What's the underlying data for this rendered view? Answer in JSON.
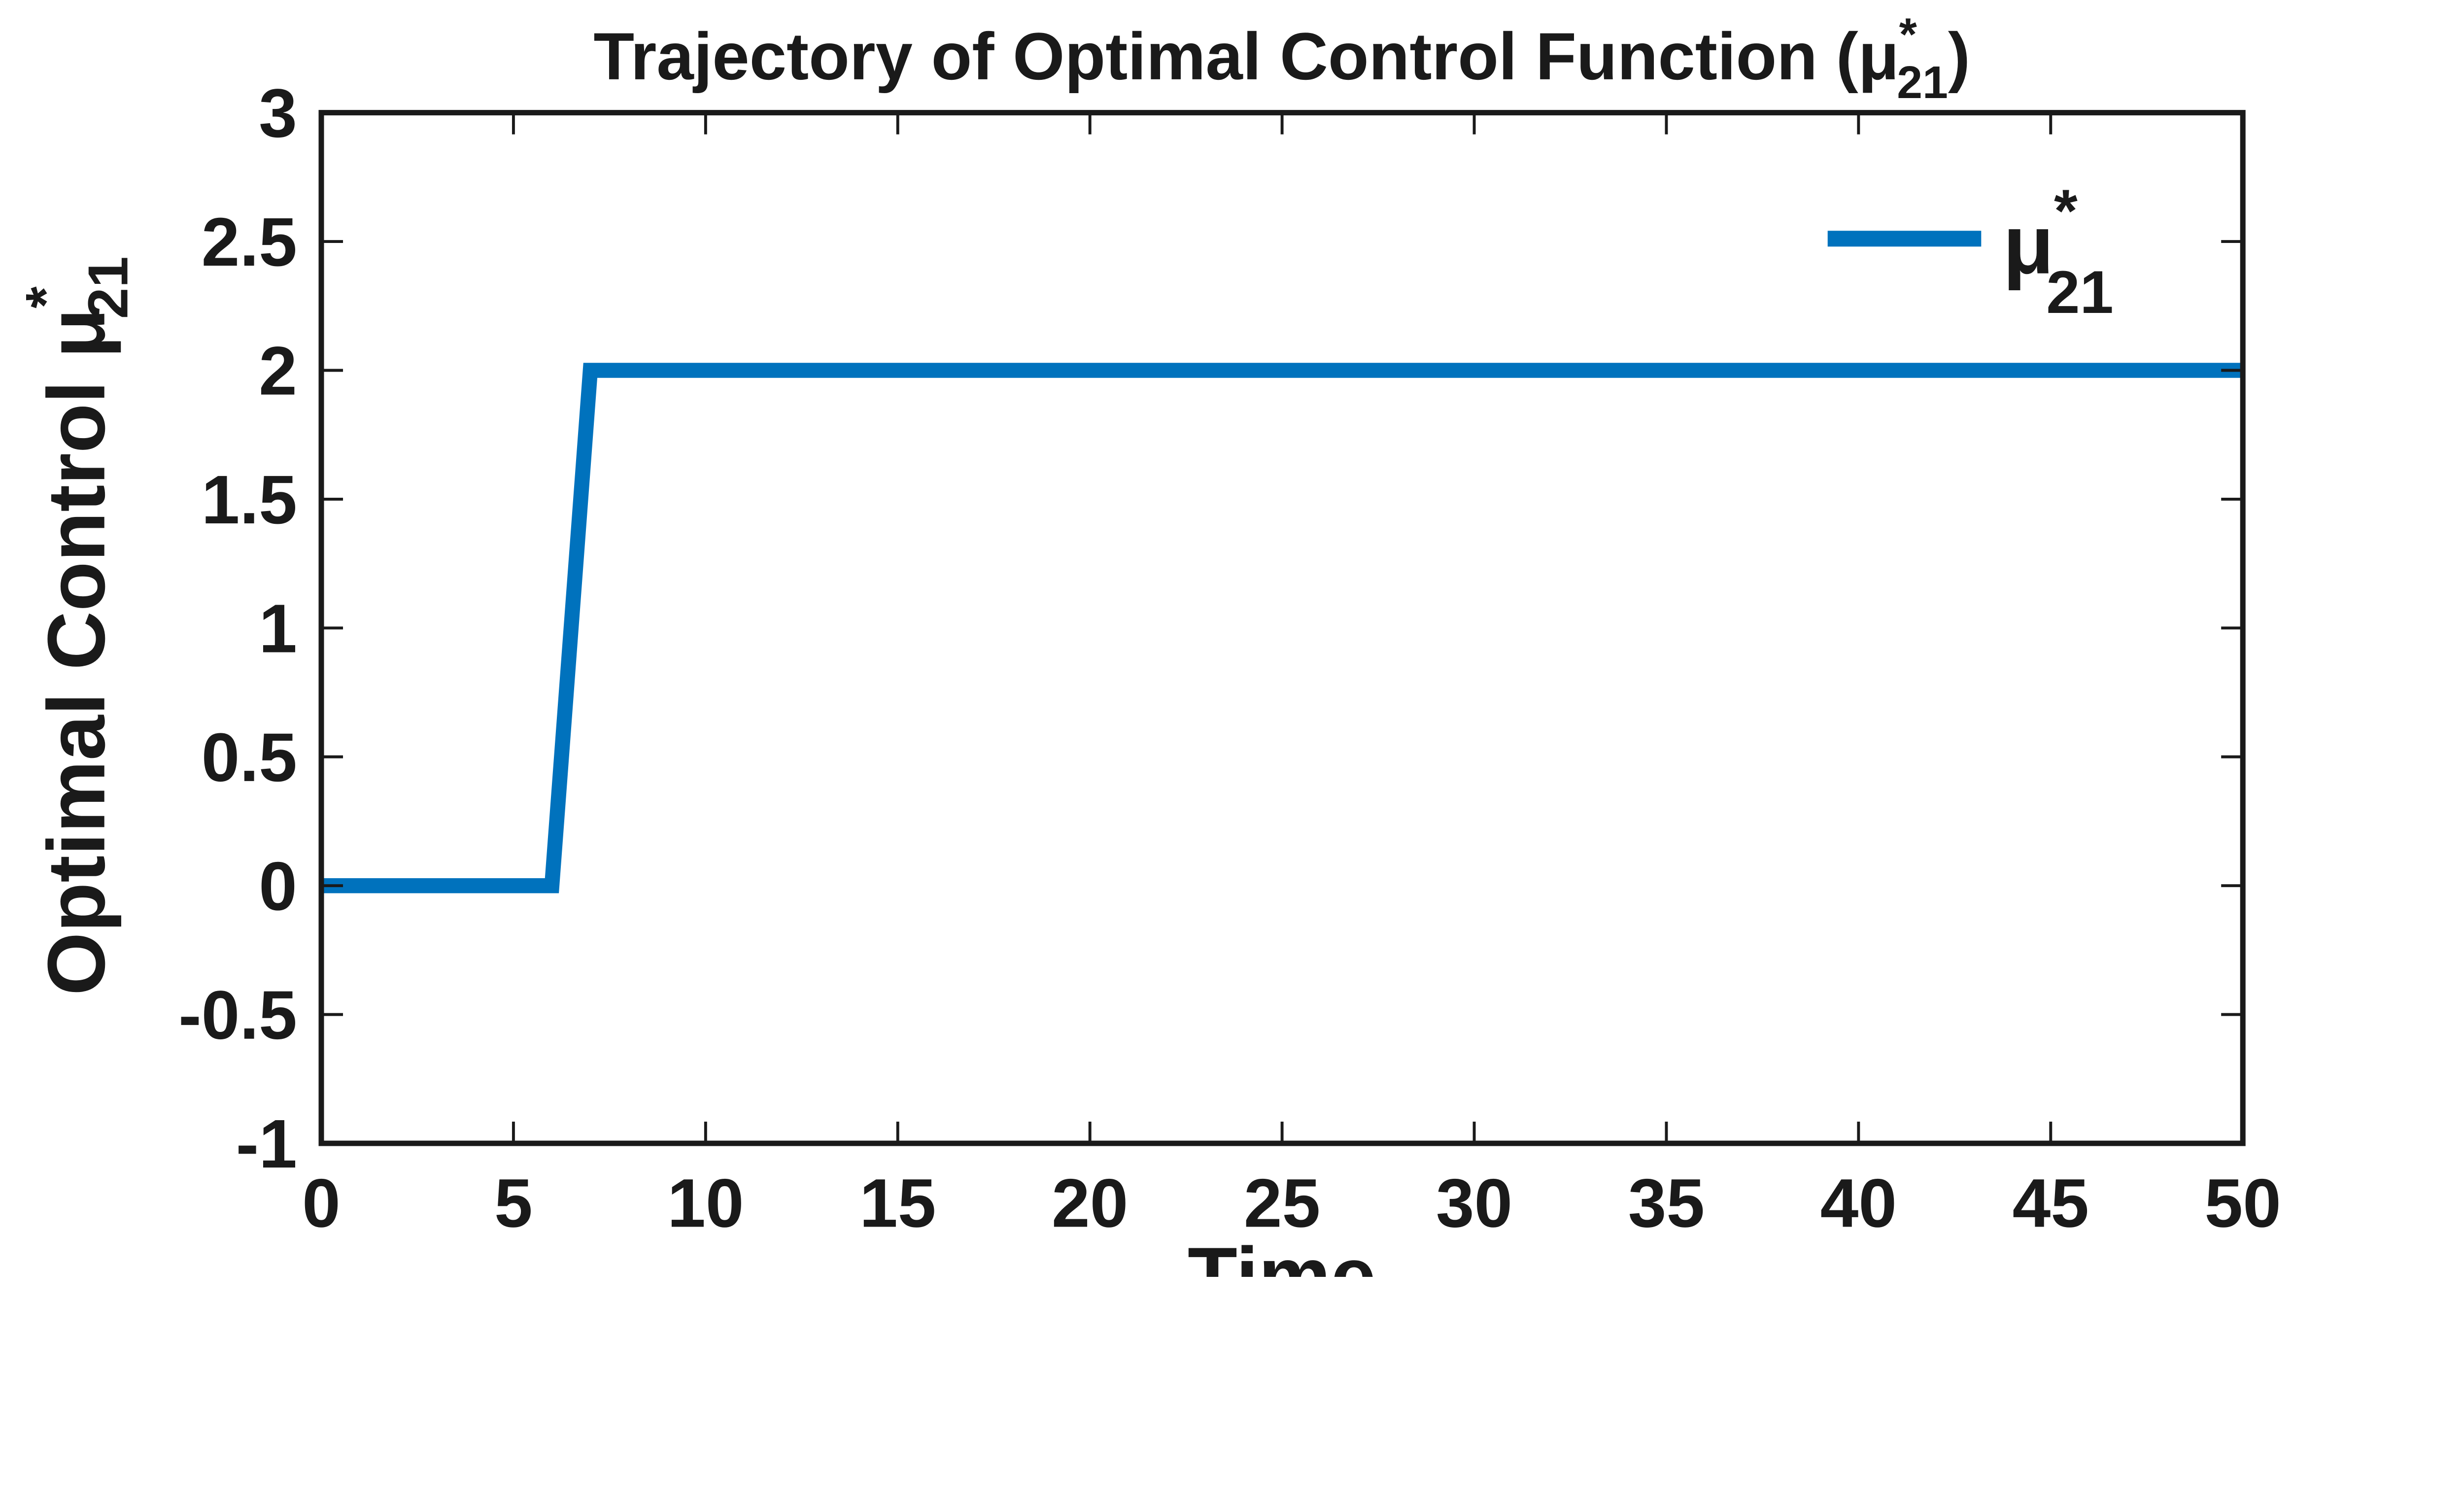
{
  "figure": {
    "background": "#ffffff",
    "title": {
      "prefix": "Trajectory of Optimal Control Function (",
      "mu": "μ",
      "sup": "*",
      "sub": "21",
      "suffix": ")"
    },
    "xlabel": "Time",
    "ylabel": {
      "prefix": "Optimal Control ",
      "mu": "μ",
      "sup": "*",
      "sub": "21"
    },
    "legend": {
      "box": false,
      "position": "northeast",
      "entries": [
        {
          "mu": "μ",
          "sup": "*",
          "sub": "21",
          "color": "#0072BD"
        }
      ]
    }
  },
  "chart_data": {
    "type": "line",
    "title": "Trajectory of Optimal Control Function (mu*_21)",
    "xlabel": "Time",
    "ylabel": "Optimal Control mu*_21",
    "series": [
      {
        "name": "mu*_21",
        "x": [
          0,
          6,
          7,
          50
        ],
        "y": [
          0,
          0,
          2,
          2
        ],
        "color": "#0072BD",
        "line_width": 36
      }
    ],
    "xlim": [
      0,
      50
    ],
    "ylim": [
      -1,
      3
    ],
    "xticks": {
      "values": [
        0,
        5,
        10,
        15,
        20,
        25,
        30,
        35,
        40,
        45,
        50
      ],
      "labels": [
        "0",
        "5",
        "10",
        "15",
        "20",
        "25",
        "30",
        "35",
        "40",
        "45",
        "50"
      ]
    },
    "yticks": {
      "values": [
        -1,
        -0.5,
        0,
        0.5,
        1,
        1.5,
        2,
        2.5,
        3
      ],
      "labels": [
        "-1",
        "-0.5",
        "0",
        "0.5",
        "1",
        "1.5",
        "2",
        "2.5",
        "3"
      ]
    },
    "grid": false,
    "box": true,
    "legend_position": "northeast",
    "axis_color": "#1a1a1a",
    "tick_label_color": "#1a1a1a"
  }
}
